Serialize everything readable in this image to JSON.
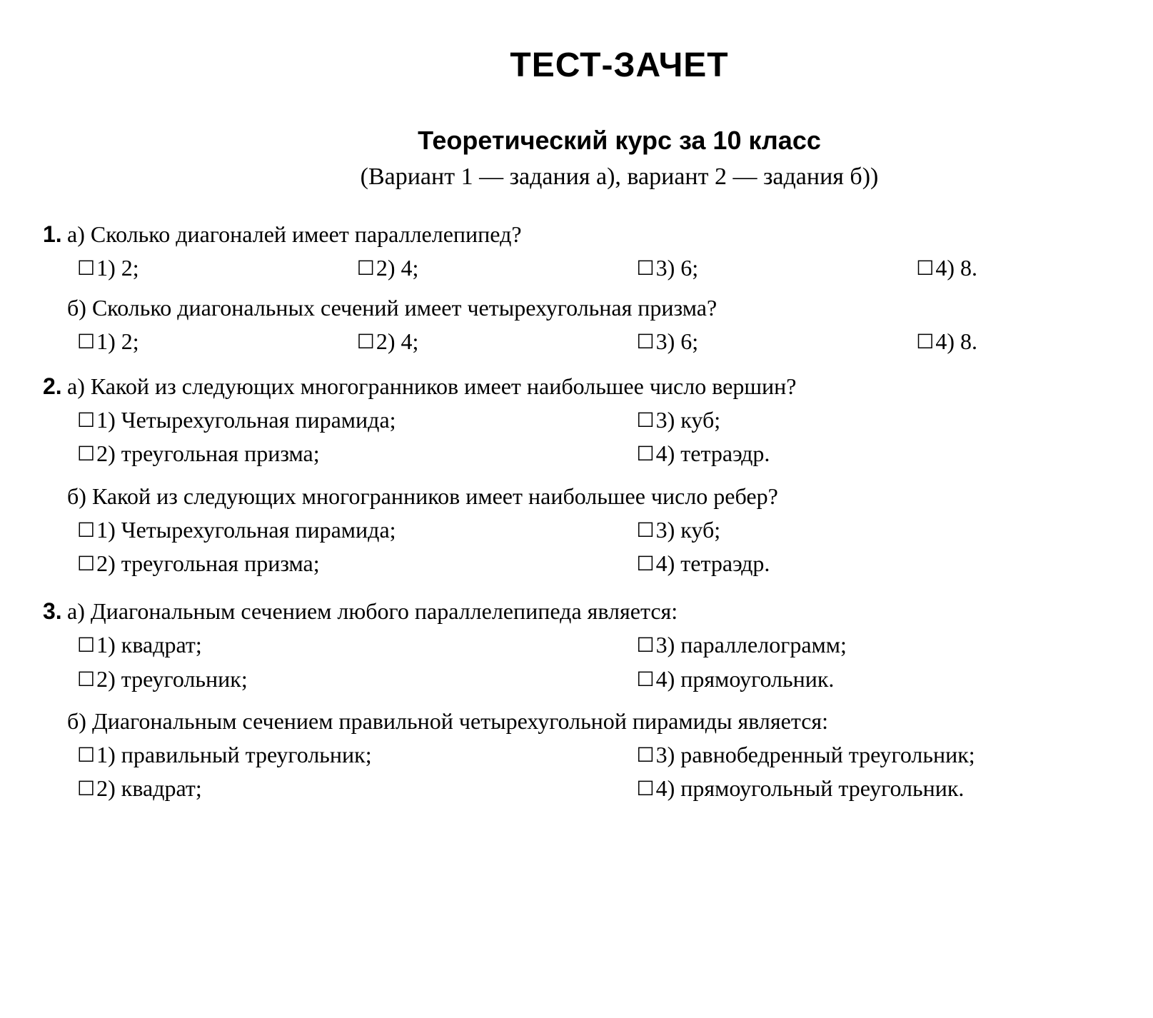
{
  "title": "ТЕСТ-ЗАЧЕТ",
  "subtitle_bold": "Теоретический курс за 10 класс",
  "subtitle_note": "(Вариант 1 — задания а), вариант 2 — задания б))",
  "checkbox_glyph": "☐",
  "questions": [
    {
      "num": "1.",
      "layout": "row4",
      "a": {
        "text": "а) Сколько диагоналей имеет параллелепипед?",
        "opts": [
          "1) 2;",
          "2) 4;",
          "3) 6;",
          "4) 8."
        ]
      },
      "b": {
        "text": "б) Сколько диагональных сечений имеет четырехугольная призма?",
        "opts": [
          "1) 2;",
          "2) 4;",
          "3) 6;",
          "4) 8."
        ]
      }
    },
    {
      "num": "2.",
      "layout": "col2",
      "a": {
        "text": "а) Какой из следующих многогранников имеет наибольшее число вершин?",
        "opts": [
          "1) Четырехугольная пирамида;",
          "2) треугольная призма;",
          "3) куб;",
          "4) тетраэдр."
        ]
      },
      "b": {
        "text": "б) Какой из следующих многогранников имеет наибольшее число ребер?",
        "opts": [
          "1) Четырехугольная пирамида;",
          "2) треугольная призма;",
          "3) куб;",
          "4) тетраэдр."
        ]
      }
    },
    {
      "num": "3.",
      "layout": "col2",
      "a": {
        "text": "а) Диагональным сечением любого параллелепипеда является:",
        "opts": [
          "1) квадрат;",
          "2) треугольник;",
          "3) параллелограмм;",
          "4) прямоугольник."
        ]
      },
      "b": {
        "text": "б) Диагональным сечением правильной четырехугольной пирамиды является:",
        "opts": [
          "1) правильный треугольник;",
          "2) квадрат;",
          "3) равнобедренный треугольник;",
          "4) прямоугольный треугольник."
        ]
      }
    }
  ]
}
